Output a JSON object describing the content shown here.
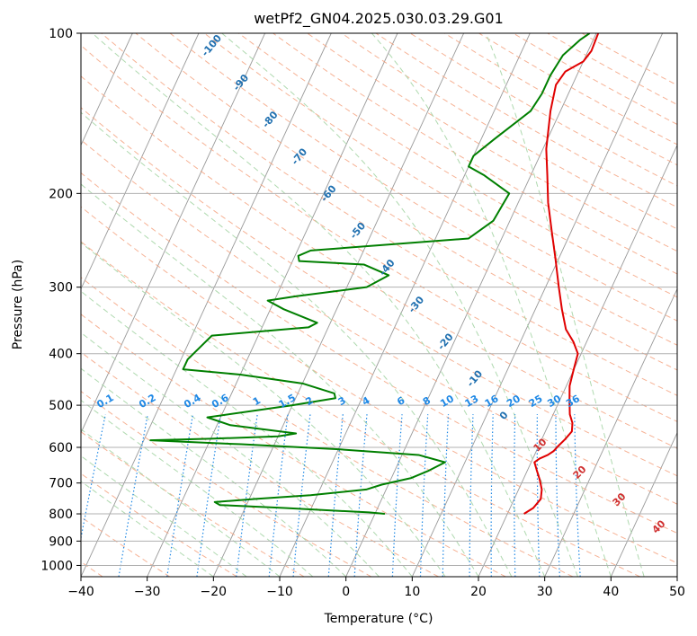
{
  "chart_data": {
    "type": "line",
    "title": "wetPf2_GN04.2025.030.03.29.G01",
    "xlabel": "Temperature (°C)",
    "ylabel": "Pressure (hPa)",
    "xlim": [
      -40,
      50
    ],
    "ylim": [
      1050,
      100
    ],
    "y_scale": "log",
    "x_ticks": [
      -40,
      -30,
      -20,
      -10,
      0,
      10,
      20,
      30,
      40,
      50
    ],
    "y_ticks": [
      100,
      200,
      300,
      400,
      500,
      600,
      700,
      800,
      900,
      1000
    ],
    "grid": true,
    "colors": {
      "temperature": "#e00000",
      "dewpoint": "#007f00",
      "isotherm": "#999999",
      "dry_adiabat": "#f4a582",
      "moist_adiabat": "#a6d5a6",
      "mixing_ratio": "#1e88e5",
      "theta_label": "#2070b0",
      "theta_e_label": "#d03030"
    },
    "series": [
      {
        "points": [
          [
            22.5,
            800
          ],
          [
            23.5,
            780
          ],
          [
            24.0,
            750
          ],
          [
            23.5,
            720
          ],
          [
            22.5,
            690
          ],
          [
            21.5,
            665
          ],
          [
            20.5,
            640
          ],
          [
            21.0,
            630
          ],
          [
            22.0,
            620
          ],
          [
            22.6,
            610
          ],
          [
            23.0,
            595
          ],
          [
            23.5,
            580
          ],
          [
            24.0,
            560
          ],
          [
            23.5,
            540
          ],
          [
            22.5,
            520
          ],
          [
            21.5,
            490
          ],
          [
            20.5,
            460
          ],
          [
            20.0,
            430
          ],
          [
            19.5,
            400
          ],
          [
            18.0,
            380
          ],
          [
            16.0,
            360
          ],
          [
            14.0,
            330
          ],
          [
            12.0,
            300
          ],
          [
            9.5,
            265
          ],
          [
            7.0,
            235
          ],
          [
            4.5,
            208
          ],
          [
            2.5,
            185
          ],
          [
            0.5,
            165
          ],
          [
            -1.5,
            140
          ],
          [
            -2.5,
            125
          ],
          [
            -2.0,
            118
          ],
          [
            0.0,
            113
          ],
          [
            0.5,
            108
          ],
          [
            0.3,
            100
          ]
        ]
      },
      {
        "points": [
          [
            1.5,
            800
          ],
          [
            -1.0,
            795
          ],
          [
            -14.0,
            780
          ],
          [
            -24.0,
            770
          ],
          [
            -25.0,
            760
          ],
          [
            -19.0,
            750
          ],
          [
            -11.0,
            738
          ],
          [
            -3.0,
            720
          ],
          [
            -1.0,
            705
          ],
          [
            3.0,
            685
          ],
          [
            5.0,
            665
          ],
          [
            7.0,
            640
          ],
          [
            2.5,
            620
          ],
          [
            -10.0,
            605
          ],
          [
            -25.0,
            592
          ],
          [
            -39.0,
            582
          ],
          [
            -30.0,
            578
          ],
          [
            -20.0,
            572
          ],
          [
            -17.5,
            565
          ],
          [
            -28.0,
            545
          ],
          [
            -32.0,
            527
          ],
          [
            -20.0,
            500
          ],
          [
            -14.0,
            485
          ],
          [
            -14.5,
            475
          ],
          [
            -20.0,
            455
          ],
          [
            -30.0,
            438
          ],
          [
            -39.0,
            428
          ],
          [
            -39.0,
            410
          ],
          [
            -37.0,
            370
          ],
          [
            -23.0,
            357
          ],
          [
            -22.0,
            350
          ],
          [
            -28.0,
            330
          ],
          [
            -31.0,
            318
          ],
          [
            -27.0,
            312
          ],
          [
            -17.0,
            300
          ],
          [
            -14.5,
            285
          ],
          [
            -19.0,
            272
          ],
          [
            -29.0,
            268
          ],
          [
            -29.5,
            262
          ],
          [
            -28.0,
            256
          ],
          [
            -5.0,
            243
          ],
          [
            -2.5,
            225
          ],
          [
            -2.0,
            200
          ],
          [
            -7.0,
            185
          ],
          [
            -10.0,
            178
          ],
          [
            -10.0,
            170
          ],
          [
            -8.0,
            158
          ],
          [
            -4.5,
            140
          ],
          [
            -4.0,
            130
          ],
          [
            -4.0,
            120
          ],
          [
            -3.5,
            110
          ],
          [
            -2.0,
            103
          ],
          [
            -1.0,
            100
          ]
        ]
      }
    ],
    "theta_labels": [
      "-100",
      "-90",
      "-80",
      "-70",
      "-60",
      "-50",
      "-40",
      "-30",
      "-20",
      "-10",
      "0"
    ],
    "theta_e_labels": [
      "10",
      "20",
      "30",
      "40"
    ],
    "mixing_ratio_labels": [
      "0.1",
      "0.2",
      "0.4",
      "0.6",
      "1",
      "1.5",
      "2",
      "3",
      "4",
      "6",
      "8",
      "10",
      "13",
      "16",
      "20",
      "25",
      "30",
      "36"
    ]
  }
}
